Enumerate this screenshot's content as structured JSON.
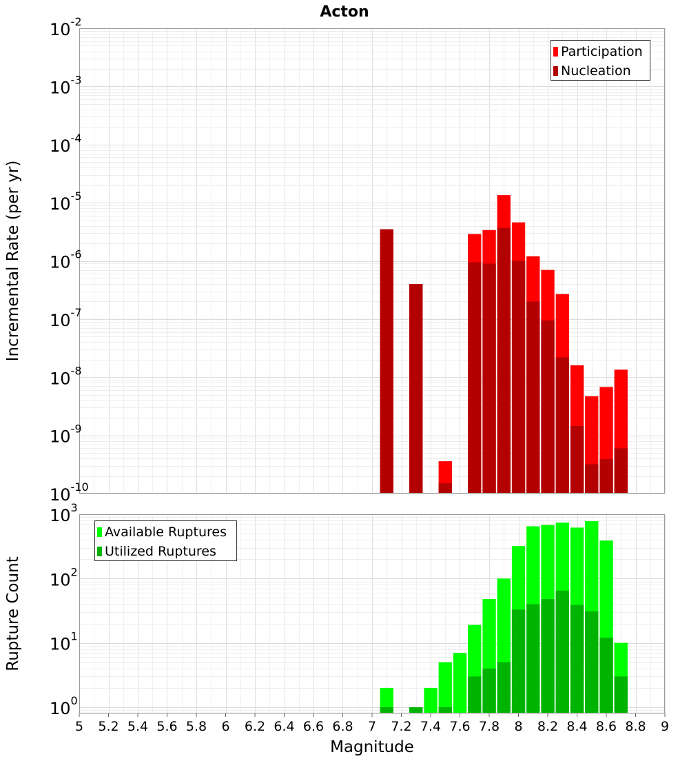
{
  "chart_data": [
    {
      "type": "bar",
      "title": "Acton",
      "xlabel": "Magnitude",
      "ylabel": "Incremental Rate (per yr)",
      "yscale": "log",
      "ylim": [
        1e-10,
        0.01
      ],
      "xlim": [
        5,
        9
      ],
      "grid": true,
      "legend_position": "top-right",
      "yticks": [
        {
          "base": "10",
          "exp": "-2",
          "value": 0.01
        },
        {
          "base": "10",
          "exp": "-3",
          "value": 0.001
        },
        {
          "base": "10",
          "exp": "-4",
          "value": 0.0001
        },
        {
          "base": "10",
          "exp": "-5",
          "value": 1e-05
        },
        {
          "base": "10",
          "exp": "-6",
          "value": 1e-06
        },
        {
          "base": "10",
          "exp": "-7",
          "value": 1e-07
        },
        {
          "base": "10",
          "exp": "-8",
          "value": 1e-08
        },
        {
          "base": "10",
          "exp": "-9",
          "value": 1e-09
        },
        {
          "base": "10",
          "exp": "-10",
          "value": 1e-10
        }
      ],
      "x": [
        7.1,
        7.3,
        7.5,
        7.7,
        7.8,
        7.9,
        8.0,
        8.1,
        8.2,
        8.3,
        8.4,
        8.5,
        8.6,
        8.7
      ],
      "series": [
        {
          "name": "Participation",
          "color": "#ff0000",
          "values": [
            3.5e-06,
            4e-07,
            3.6e-10,
            2.9e-06,
            3.4e-06,
            1.35e-05,
            4.6e-06,
            1.2e-06,
            7e-07,
            2.7e-07,
            1.6e-08,
            4.7e-09,
            6.8e-09,
            1.35e-08
          ]
        },
        {
          "name": "Nucleation",
          "color": "#b30000",
          "values": [
            3.5e-06,
            4e-07,
            1.5e-10,
            9.5e-07,
            9e-07,
            3.7e-06,
            1e-06,
            2e-07,
            9.5e-08,
            2.2e-08,
            1.45e-09,
            3.2e-10,
            3.9e-10,
            6e-10
          ]
        }
      ]
    },
    {
      "type": "bar",
      "xlabel": "Magnitude",
      "ylabel": "Rupture Count",
      "yscale": "log",
      "ylim": [
        0.8,
        1000
      ],
      "xlim": [
        5,
        9
      ],
      "grid": true,
      "legend_position": "top-left",
      "yticks": [
        {
          "base": "10",
          "exp": "3",
          "value": 1000
        },
        {
          "base": "10",
          "exp": "2",
          "value": 100
        },
        {
          "base": "10",
          "exp": "1",
          "value": 10
        },
        {
          "base": "10",
          "exp": "0",
          "value": 1
        }
      ],
      "xticks": [
        "5",
        "5.2",
        "5.4",
        "5.6",
        "5.8",
        "6",
        "6.2",
        "6.4",
        "6.6",
        "6.8",
        "7",
        "7.2",
        "7.4",
        "7.6",
        "7.8",
        "8",
        "8.2",
        "8.4",
        "8.6",
        "8.8",
        "9"
      ],
      "x": [
        7.1,
        7.3,
        7.4,
        7.5,
        7.6,
        7.7,
        7.8,
        7.9,
        8.0,
        8.1,
        8.2,
        8.3,
        8.4,
        8.5,
        8.6,
        8.7
      ],
      "series": [
        {
          "name": "Available Ruptures",
          "color": "#00ff00",
          "values": [
            2,
            1,
            2,
            5,
            7,
            19,
            48,
            100,
            320,
            650,
            680,
            740,
            620,
            780,
            390,
            10
          ]
        },
        {
          "name": "Utilized Ruptures",
          "color": "#00b300",
          "values": [
            1,
            1,
            0,
            1,
            0,
            3,
            4,
            5,
            33,
            40,
            48,
            65,
            39,
            31,
            12,
            3
          ]
        }
      ]
    }
  ]
}
